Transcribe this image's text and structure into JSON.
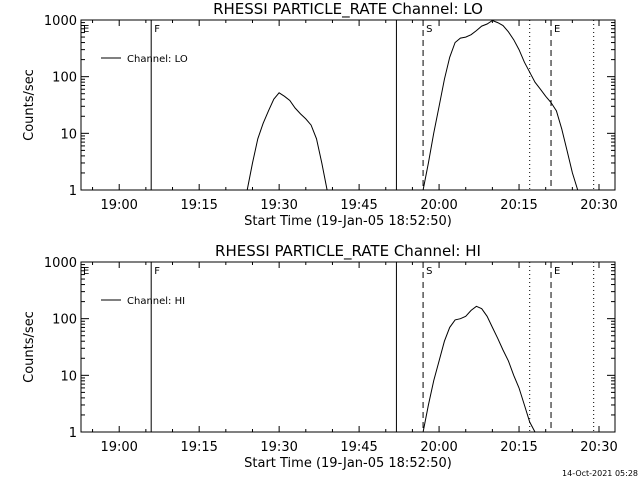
{
  "footer": {
    "timestamp": "14-Oct-2021 05:28"
  },
  "chart_data": [
    {
      "type": "line",
      "title": "RHESSI PARTICLE_RATE Channel: LO",
      "xlabel": "Start Time (19-Jan-05 18:52:50)",
      "ylabel": "Counts/sec",
      "y_scale": "log",
      "ylim": [
        1,
        1000
      ],
      "x_ticks": [
        "19:00",
        "19:15",
        "19:30",
        "19:45",
        "20:00",
        "20:15",
        "20:30"
      ],
      "y_ticks": [
        "1",
        "10",
        "100",
        "1000"
      ],
      "legend": "Channel: LO",
      "legend_position": "top-left",
      "marker_labels": {
        "f": "F",
        "s": "S",
        "e": "E"
      },
      "series": [
        {
          "name": "Channel: LO",
          "segments": [
            [
              [
                "19:24",
                1
              ],
              [
                "19:25",
                3
              ],
              [
                "19:26",
                8
              ],
              [
                "19:27",
                15
              ],
              [
                "19:28",
                25
              ],
              [
                "19:29",
                40
              ],
              [
                "19:30",
                52
              ],
              [
                "19:31",
                45
              ],
              [
                "19:32",
                38
              ],
              [
                "19:33",
                28
              ],
              [
                "19:34",
                22
              ],
              [
                "19:35",
                18
              ],
              [
                "19:36",
                14
              ],
              [
                "19:37",
                8
              ],
              [
                "19:38",
                3
              ],
              [
                "19:39",
                1
              ]
            ],
            [
              [
                "19:57",
                1
              ],
              [
                "19:58",
                3
              ],
              [
                "19:59",
                10
              ],
              [
                "20:00",
                30
              ],
              [
                "20:01",
                90
              ],
              [
                "20:02",
                220
              ],
              [
                "20:03",
                400
              ],
              [
                "20:04",
                480
              ],
              [
                "20:05",
                500
              ],
              [
                "20:06",
                550
              ],
              [
                "20:07",
                650
              ],
              [
                "20:08",
                780
              ],
              [
                "20:09",
                850
              ],
              [
                "20:10",
                980
              ],
              [
                "20:11",
                900
              ],
              [
                "20:12",
                800
              ],
              [
                "20:13",
                620
              ],
              [
                "20:14",
                450
              ],
              [
                "20:15",
                300
              ],
              [
                "20:16",
                180
              ],
              [
                "20:17",
                120
              ],
              [
                "20:18",
                80
              ],
              [
                "20:19",
                60
              ],
              [
                "20:20",
                45
              ],
              [
                "20:21",
                35
              ],
              [
                "20:22",
                25
              ],
              [
                "20:23",
                12
              ],
              [
                "20:24",
                5
              ],
              [
                "20:25",
                2
              ],
              [
                "20:26",
                1
              ]
            ]
          ]
        }
      ],
      "vertical_lines": [
        {
          "time": "19:06",
          "style": "solid",
          "label": "F"
        },
        {
          "time": "19:52",
          "style": "solid"
        },
        {
          "time": "19:57",
          "style": "dashed",
          "label": "S"
        },
        {
          "time": "20:17",
          "style": "dotted"
        },
        {
          "time": "20:21",
          "style": "dashed",
          "label": "E"
        },
        {
          "time": "20:29",
          "style": "dotted"
        }
      ]
    },
    {
      "type": "line",
      "title": "RHESSI PARTICLE_RATE Channel: HI",
      "xlabel": "Start Time (19-Jan-05 18:52:50)",
      "ylabel": "Counts/sec",
      "y_scale": "log",
      "ylim": [
        1,
        1000
      ],
      "x_ticks": [
        "19:00",
        "19:15",
        "19:30",
        "19:45",
        "20:00",
        "20:15",
        "20:30"
      ],
      "y_ticks": [
        "1",
        "10",
        "100",
        "1000"
      ],
      "legend": "Channel: HI",
      "legend_position": "top-left",
      "marker_labels": {
        "f": "F",
        "s": "S",
        "e": "E"
      },
      "series": [
        {
          "name": "Channel: HI",
          "segments": [
            [
              [
                "19:57",
                1
              ],
              [
                "19:58",
                3
              ],
              [
                "19:59",
                8
              ],
              [
                "20:00",
                18
              ],
              [
                "20:01",
                40
              ],
              [
                "20:02",
                70
              ],
              [
                "20:03",
                95
              ],
              [
                "20:04",
                100
              ],
              [
                "20:05",
                110
              ],
              [
                "20:06",
                140
              ],
              [
                "20:07",
                165
              ],
              [
                "20:08",
                150
              ],
              [
                "20:09",
                110
              ],
              [
                "20:10",
                70
              ],
              [
                "20:11",
                45
              ],
              [
                "20:12",
                28
              ],
              [
                "20:13",
                18
              ],
              [
                "20:14",
                10
              ],
              [
                "20:15",
                6
              ],
              [
                "20:16",
                3
              ],
              [
                "20:17",
                1.5
              ],
              [
                "20:18",
                1
              ]
            ]
          ]
        }
      ],
      "vertical_lines": [
        {
          "time": "19:06",
          "style": "solid",
          "label": "F"
        },
        {
          "time": "19:52",
          "style": "solid"
        },
        {
          "time": "19:57",
          "style": "dashed",
          "label": "S"
        },
        {
          "time": "20:17",
          "style": "dotted"
        },
        {
          "time": "20:21",
          "style": "dashed",
          "label": "E"
        },
        {
          "time": "20:29",
          "style": "dotted"
        }
      ]
    }
  ]
}
